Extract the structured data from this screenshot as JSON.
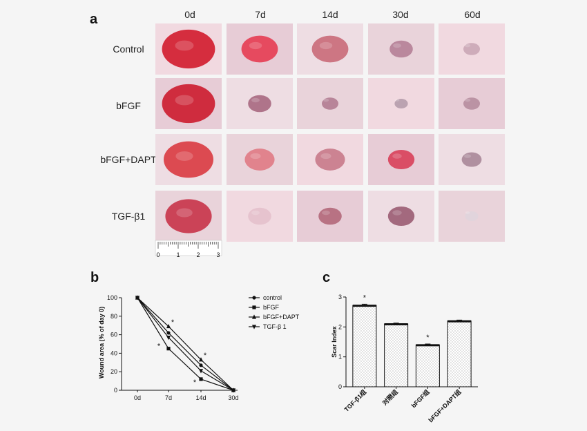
{
  "panel_a": {
    "letter": "a",
    "columns": [
      "0d",
      "7d",
      "14d",
      "30d",
      "60d"
    ],
    "rows": [
      "Control",
      "bFGF",
      "bFGF+DAPT",
      "TGF-β1"
    ],
    "ruler_labels": [
      "0",
      "1",
      "2",
      "3"
    ],
    "photos": [
      [
        "#d21a2c",
        "#e63c52",
        "#c96a78",
        "#b58096",
        "#caa6b6"
      ],
      [
        "#cc1b2e",
        "#a7687f",
        "#b27c91",
        "#b59cac",
        "#b68d9e"
      ],
      [
        "#d93a40",
        "#e07a84",
        "#c8798a",
        "#d8405a",
        "#a98798"
      ],
      [
        "#c83348",
        "#e4c0cc",
        "#b2687a",
        "#9a5c72",
        "#e0d4dc"
      ]
    ],
    "wound_fraction": [
      [
        0.8,
        0.55,
        0.55,
        0.35,
        0.25
      ],
      [
        0.8,
        0.35,
        0.25,
        0.2,
        0.25
      ],
      [
        0.75,
        0.45,
        0.45,
        0.4,
        0.3
      ],
      [
        0.7,
        0.35,
        0.35,
        0.4,
        0.2
      ]
    ]
  },
  "chart_data": [
    {
      "type": "line",
      "panel": "b",
      "ylabel": "Wound area (% of day 0)",
      "x": [
        "0d",
        "7d",
        "14d",
        "30d"
      ],
      "ylim": [
        0,
        100
      ],
      "yticks": [
        0,
        20,
        40,
        60,
        80,
        100
      ],
      "series": [
        {
          "name": "control",
          "marker": "circle",
          "values": [
            100,
            62,
            27,
            0
          ]
        },
        {
          "name": "bFGF",
          "marker": "square",
          "values": [
            100,
            45,
            12,
            0
          ]
        },
        {
          "name": "bFGF+DAPT",
          "marker": "triangle-up",
          "values": [
            100,
            69,
            33,
            0
          ]
        },
        {
          "name": "TGF-β 1",
          "marker": "triangle-down",
          "values": [
            100,
            57,
            21,
            0
          ]
        }
      ],
      "annotations": [
        {
          "x": "7d",
          "y": 74,
          "text": "*"
        },
        {
          "x": "7d",
          "y": 48,
          "text": "*"
        },
        {
          "x": "14d",
          "y": 38,
          "text": "*"
        },
        {
          "x": "14d",
          "y": 9,
          "text": "*"
        }
      ],
      "legend": "right"
    },
    {
      "type": "bar",
      "panel": "c",
      "ylabel": "Scar Index",
      "categories": [
        "TGF-β1组",
        "对照组",
        "bFGF组",
        "bFGF+DAPT组"
      ],
      "values": [
        2.72,
        2.1,
        1.4,
        2.2
      ],
      "errors": [
        0.04,
        0.03,
        0.03,
        0.03
      ],
      "significance": [
        "*",
        "",
        "*",
        ""
      ],
      "ylim": [
        0,
        3
      ],
      "yticks": [
        0,
        1,
        2,
        3
      ]
    }
  ],
  "panel_b_letter": "b",
  "panel_c_letter": "c"
}
